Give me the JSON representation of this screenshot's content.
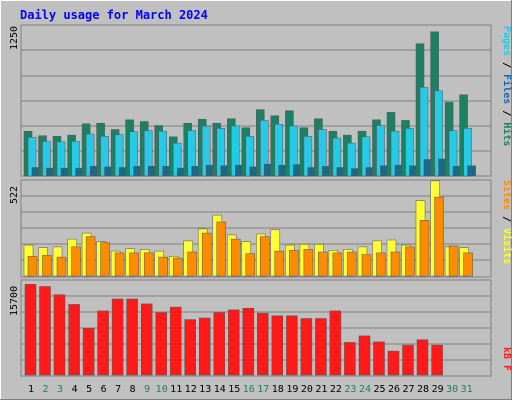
{
  "chart_data": [
    {
      "type": "bar",
      "title": "Daily usage for March 2024",
      "panel": "hits-files-pages",
      "ymax_label": "1250",
      "legend_labels": [
        "Pages",
        "Files",
        "Hits"
      ],
      "categories": [
        "1",
        "2",
        "3",
        "4",
        "5",
        "6",
        "7",
        "8",
        "9",
        "10",
        "11",
        "12",
        "13",
        "14",
        "15",
        "16",
        "17",
        "18",
        "19",
        "20",
        "21",
        "22",
        "23",
        "24",
        "25",
        "26",
        "27",
        "28",
        "29",
        "30",
        "31"
      ],
      "series": [
        {
          "name": "Hits",
          "color": "#1e8062",
          "values": [
            395,
            355,
            350,
            360,
            460,
            465,
            410,
            495,
            480,
            445,
            345,
            465,
            500,
            465,
            505,
            425,
            585,
            530,
            575,
            425,
            505,
            395,
            360,
            395,
            495,
            560,
            490,
            1165,
            1270,
            650,
            715
          ]
        },
        {
          "name": "Files",
          "color": "#26c9e8",
          "values": [
            340,
            305,
            300,
            305,
            370,
            350,
            365,
            390,
            400,
            395,
            290,
            400,
            440,
            420,
            440,
            350,
            490,
            455,
            440,
            350,
            410,
            335,
            290,
            345,
            445,
            395,
            420,
            780,
            750,
            400,
            420
          ]
        },
        {
          "name": "Pages",
          "color": "#196a89",
          "values": [
            75,
            70,
            70,
            70,
            85,
            80,
            75,
            85,
            85,
            85,
            70,
            85,
            95,
            90,
            95,
            80,
            105,
            95,
            100,
            75,
            85,
            75,
            65,
            75,
            90,
            95,
            90,
            145,
            150,
            85,
            90
          ]
        }
      ],
      "ylim": [
        0,
        1330
      ]
    },
    {
      "type": "bar",
      "panel": "visits-sites",
      "ymax_label": "522",
      "legend_labels": [
        "Sites",
        "Visits"
      ],
      "categories": [
        "1",
        "2",
        "3",
        "4",
        "5",
        "6",
        "7",
        "8",
        "9",
        "10",
        "11",
        "12",
        "13",
        "14",
        "15",
        "16",
        "17",
        "18",
        "19",
        "20",
        "21",
        "22",
        "23",
        "24",
        "25",
        "26",
        "27",
        "28",
        "29",
        "30",
        "31"
      ],
      "series": [
        {
          "name": "Visits",
          "color": "#ffff33",
          "values": [
            180,
            165,
            170,
            215,
            250,
            200,
            145,
            160,
            155,
            145,
            115,
            205,
            275,
            355,
            240,
            200,
            245,
            270,
            180,
            185,
            185,
            150,
            155,
            170,
            205,
            210,
            180,
            440,
            555,
            170,
            165
          ]
        },
        {
          "name": "Sites",
          "color": "#ff8c00",
          "values": [
            115,
            120,
            110,
            170,
            230,
            195,
            135,
            135,
            135,
            110,
            105,
            140,
            250,
            315,
            215,
            130,
            230,
            145,
            150,
            155,
            140,
            135,
            140,
            125,
            135,
            140,
            170,
            325,
            460,
            175,
            135
          ]
        }
      ],
      "ylim": [
        0,
        560
      ]
    },
    {
      "type": "bar",
      "panel": "kb-f",
      "ymax_label": "15700",
      "legend_labels": [
        "kB F"
      ],
      "categories": [
        "1",
        "2",
        "3",
        "4",
        "5",
        "6",
        "7",
        "8",
        "9",
        "10",
        "11",
        "12",
        "13",
        "14",
        "15",
        "16",
        "17",
        "18",
        "19",
        "20",
        "21",
        "22",
        "23",
        "24",
        "25",
        "26",
        "27",
        "28",
        "29",
        "30",
        "31"
      ],
      "series": [
        {
          "name": "kB F",
          "color": "#ff1a1a",
          "values": [
            16700,
            16300,
            14800,
            13000,
            8600,
            11800,
            14000,
            14000,
            13100,
            11500,
            12500,
            10200,
            10500,
            11500,
            12000,
            12300,
            11400,
            10900,
            10900,
            10400,
            10400,
            11800,
            6000,
            7200,
            6100,
            4400,
            5500,
            6500,
            5500,
            0,
            0
          ]
        }
      ],
      "ylim": [
        0,
        17500
      ]
    }
  ],
  "colors": {
    "background": "#c0c0c0",
    "frame": "#ffffff",
    "grid": "#808080",
    "title": "#0000ff",
    "weekend_label": "#1e8062",
    "weekday_label": "#000000",
    "legend_pages": "#26c9e8",
    "legend_files": "#1e64b4",
    "legend_hits": "#1e8062",
    "legend_sites": "#ff8c00",
    "legend_visits": "#ffff33",
    "legend_kbf": "#ff1a1a"
  },
  "weekend_days": [
    2,
    3,
    9,
    10,
    16,
    17,
    23,
    24,
    30,
    31
  ]
}
